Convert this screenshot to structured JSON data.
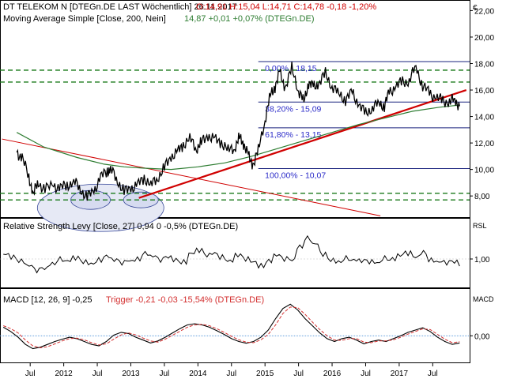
{
  "header": {
    "title": "DT TELEKOM N [DTEGn.DE LAST Wöchentlich] 26.11.2017",
    "ohlc": "O:14,91 H:15,04 L:14,71 C:14,78 -0,18 -1,20%",
    "currency": "€"
  },
  "ma_legend": {
    "name": "Moving Average Simple [Close, 200, Nein]",
    "value": "14,87 +0,01 +0,07% (DTEGn.DE)"
  },
  "rsl_legend": "Relative Strength Levy [Close, 27] 0,94 0 -0,5% (DTEGn.DE)",
  "rsl_axis_title": "RSL",
  "macd_legend": {
    "name": "MACD [12, 26, 9] -0,25",
    "trigger": "Trigger -0,21 -0,03 -15,54% (DTEGn.DE)"
  },
  "macd_axis_title": "MACD",
  "colors": {
    "price": "#000000",
    "ma200": "#2e7d32",
    "trendline": "#d00000",
    "support_dashed": "#1a7a1a",
    "fib_lines": "#1a237e",
    "fib_text": "#2b2bc8",
    "macd_trigger": "#d32f2f",
    "zero_line": "#4a90d9",
    "ellipse": "#e6e9f5"
  },
  "chart_data": [
    {
      "type": "line",
      "panel": "price",
      "x_ticks": [
        "Jul",
        "2012",
        "Jul",
        "2013",
        "Jul",
        "2014",
        "Jul",
        "2015",
        "Jul",
        "2016",
        "Jul",
        "2017",
        "Jul"
      ],
      "y_tick_labels": [
        "8,00",
        "10,00",
        "12,00",
        "14,00",
        "16,00",
        "18,00",
        "20,00",
        "22,00"
      ],
      "ylim": [
        6.4,
        22.8
      ],
      "close_series": [
        [
          2011.3,
          11.3
        ],
        [
          2011.38,
          10.9
        ],
        [
          2011.48,
          9.4
        ],
        [
          2011.55,
          8.2
        ],
        [
          2011.62,
          9.0
        ],
        [
          2011.72,
          8.5
        ],
        [
          2011.85,
          8.8
        ],
        [
          2011.95,
          8.6
        ],
        [
          2012.05,
          8.8
        ],
        [
          2012.15,
          9.1
        ],
        [
          2012.25,
          8.5
        ],
        [
          2012.35,
          7.9
        ],
        [
          2012.45,
          8.4
        ],
        [
          2012.55,
          9.4
        ],
        [
          2012.65,
          9.9
        ],
        [
          2012.7,
          10.0
        ],
        [
          2012.8,
          9.2
        ],
        [
          2012.9,
          8.3
        ],
        [
          2013.0,
          8.6
        ],
        [
          2013.1,
          8.8
        ],
        [
          2013.2,
          9.4
        ],
        [
          2013.3,
          8.8
        ],
        [
          2013.4,
          9.4
        ],
        [
          2013.5,
          10.1
        ],
        [
          2013.6,
          11.0
        ],
        [
          2013.7,
          11.3
        ],
        [
          2013.78,
          11.9
        ],
        [
          2013.88,
          12.3
        ],
        [
          2013.98,
          11.6
        ],
        [
          2014.05,
          12.0
        ],
        [
          2014.15,
          12.6
        ],
        [
          2014.25,
          12.2
        ],
        [
          2014.35,
          12.1
        ],
        [
          2014.45,
          11.4
        ],
        [
          2014.55,
          11.7
        ],
        [
          2014.62,
          12.4
        ],
        [
          2014.68,
          12.0
        ],
        [
          2014.75,
          11.0
        ],
        [
          2014.82,
          10.4
        ],
        [
          2014.9,
          11.4
        ],
        [
          2015.0,
          13.8
        ],
        [
          2015.08,
          15.6
        ],
        [
          2015.15,
          16.3
        ],
        [
          2015.22,
          17.3
        ],
        [
          2015.3,
          16.2
        ],
        [
          2015.4,
          17.6
        ],
        [
          2015.5,
          16.0
        ],
        [
          2015.58,
          15.1
        ],
        [
          2015.65,
          16.6
        ],
        [
          2015.72,
          16.2
        ],
        [
          2015.8,
          16.5
        ],
        [
          2015.9,
          17.2
        ],
        [
          2016.0,
          16.3
        ],
        [
          2016.1,
          15.7
        ],
        [
          2016.2,
          15.3
        ],
        [
          2016.3,
          15.8
        ],
        [
          2016.4,
          14.9
        ],
        [
          2016.5,
          14.2
        ],
        [
          2016.6,
          14.7
        ],
        [
          2016.7,
          15.0
        ],
        [
          2016.78,
          14.8
        ],
        [
          2016.85,
          15.8
        ],
        [
          2016.95,
          16.3
        ],
        [
          2017.05,
          16.6
        ],
        [
          2017.15,
          16.7
        ],
        [
          2017.25,
          17.8
        ],
        [
          2017.35,
          16.3
        ],
        [
          2017.45,
          15.8
        ],
        [
          2017.55,
          15.4
        ],
        [
          2017.65,
          15.2
        ],
        [
          2017.75,
          15.1
        ],
        [
          2017.83,
          15.3
        ],
        [
          2017.9,
          14.78
        ]
      ],
      "ma200_series": [
        [
          2011.3,
          12.8
        ],
        [
          2011.7,
          11.7
        ],
        [
          2012.2,
          10.9
        ],
        [
          2012.6,
          10.4
        ],
        [
          2012.9,
          10.2
        ],
        [
          2013.2,
          10.1
        ],
        [
          2013.6,
          10.0
        ],
        [
          2014.0,
          10.2
        ],
        [
          2014.4,
          10.5
        ],
        [
          2014.8,
          11.0
        ],
        [
          2015.2,
          11.6
        ],
        [
          2015.6,
          12.2
        ],
        [
          2016.0,
          12.8
        ],
        [
          2016.4,
          13.4
        ],
        [
          2016.8,
          13.9
        ],
        [
          2017.2,
          14.4
        ],
        [
          2017.6,
          14.7
        ],
        [
          2017.9,
          14.87
        ]
      ],
      "trendlines": [
        {
          "color": "red",
          "thin": true,
          "from": [
            2011.08,
            12.3
          ],
          "to": [
            2016.72,
            6.5
          ]
        },
        {
          "color": "red",
          "thin": false,
          "from": [
            2013.12,
            7.85
          ],
          "to": [
            2018.0,
            16.0
          ]
        }
      ],
      "support_levels": [
        17.5,
        16.6,
        8.2,
        7.7
      ],
      "fibonacci": [
        {
          "label": "0,00% - 18,15",
          "value": 18.15
        },
        {
          "label": "38,20% - 15,09",
          "value": 15.09
        },
        {
          "label": "61,80% - 13,15",
          "value": 13.15
        },
        {
          "label": "100,00% - 10,07",
          "value": 10.07
        }
      ]
    },
    {
      "type": "line",
      "panel": "rsl",
      "name": "Relative Strength Levy [Close, 27]",
      "y_tick_labels": [
        "1,00"
      ],
      "ylim": [
        0.7,
        1.35
      ],
      "values": [
        1.05,
        1.02,
        0.98,
        0.93,
        0.88,
        0.9,
        0.95,
        1.0,
        0.98,
        1.01,
        0.97,
        0.95,
        0.99,
        1.03,
        0.99,
        0.96,
        0.98,
        1.0,
        1.06,
        1.03,
        0.99,
        1.02,
        0.99,
        0.97,
        1.06,
        1.09,
        1.04,
        1.06,
        1.02,
        0.98,
        1.04,
        1.0,
        0.97,
        0.93,
        0.98,
        1.04,
        1.0,
        0.99,
        1.13,
        1.22,
        1.16,
        1.05,
        0.99,
        0.97,
        1.01,
        0.99,
        0.98,
        0.97,
        0.96,
        1.01,
        1.0,
        1.04,
        1.06,
        1.02,
        1.07,
        0.99,
        0.97,
        0.96,
        0.97,
        0.94
      ]
    },
    {
      "type": "line",
      "panel": "macd",
      "name": "MACD [12, 26, 9]",
      "y_tick_labels": [
        "0,00"
      ],
      "ylim": [
        -0.9,
        1.3
      ],
      "macd": [
        0.3,
        0.15,
        -0.05,
        -0.3,
        -0.45,
        -0.4,
        -0.3,
        -0.2,
        -0.12,
        -0.05,
        -0.1,
        -0.2,
        -0.3,
        -0.35,
        -0.2,
        0.02,
        0.12,
        0.08,
        -0.05,
        -0.15,
        -0.25,
        -0.18,
        -0.05,
        0.1,
        0.25,
        0.38,
        0.42,
        0.38,
        0.3,
        0.18,
        0.05,
        -0.1,
        -0.2,
        -0.26,
        -0.2,
        -0.05,
        0.2,
        0.6,
        0.95,
        1.1,
        0.9,
        0.6,
        0.35,
        0.1,
        -0.1,
        -0.2,
        -0.1,
        -0.05,
        -0.15,
        -0.28,
        -0.2,
        -0.15,
        -0.2,
        -0.1,
        0.0,
        0.12,
        0.2,
        0.28,
        0.15,
        -0.05,
        -0.2,
        -0.3,
        -0.25
      ],
      "trigger": [
        0.35,
        0.25,
        0.1,
        -0.15,
        -0.35,
        -0.42,
        -0.38,
        -0.28,
        -0.18,
        -0.1,
        -0.08,
        -0.14,
        -0.24,
        -0.32,
        -0.28,
        -0.12,
        0.03,
        0.1,
        0.03,
        -0.08,
        -0.18,
        -0.22,
        -0.12,
        0.02,
        0.16,
        0.3,
        0.38,
        0.4,
        0.35,
        0.25,
        0.12,
        -0.02,
        -0.14,
        -0.22,
        -0.24,
        -0.14,
        0.05,
        0.38,
        0.78,
        1.0,
        0.98,
        0.75,
        0.48,
        0.22,
        0.0,
        -0.15,
        -0.16,
        -0.1,
        -0.1,
        -0.22,
        -0.24,
        -0.18,
        -0.18,
        -0.14,
        -0.05,
        0.06,
        0.15,
        0.24,
        0.22,
        0.05,
        -0.12,
        -0.24,
        -0.21
      ]
    }
  ]
}
